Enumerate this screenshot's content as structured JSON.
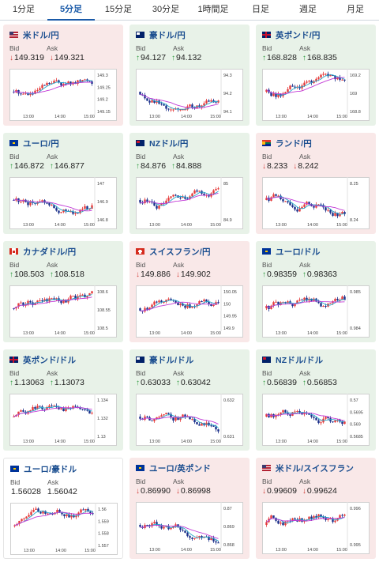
{
  "tabs": [
    "1分足",
    "5分足",
    "15分足",
    "30分足",
    "1時間足",
    "日足",
    "週足",
    "月足"
  ],
  "active_tab": 1,
  "labels": {
    "bid": "Bid",
    "ask": "Ask"
  },
  "colors": {
    "up_bg": "#e8f2e8",
    "down_bg": "#f9e8e8",
    "candle_up": "#e53a3a",
    "candle_down": "#1a2f8a",
    "ma_short": "#25a6c9",
    "ma_long": "#c23ad6",
    "arrow_up": "#2d9a3d",
    "arrow_down": "#d2403a",
    "link": "#1a4d8f"
  },
  "cards": [
    {
      "pair": "米ドル/円",
      "flag": "us-jp",
      "trend": "down",
      "bid_dir": "down",
      "bid": "149.319",
      "ask_dir": "down",
      "ask": "149.321",
      "yticks": [
        "149.3",
        "149.25",
        "149.2",
        "149.15"
      ],
      "xticks": [
        "13:00",
        "14:00",
        "15:00"
      ]
    },
    {
      "pair": "豪ドル/円",
      "flag": "au-jp",
      "trend": "up",
      "bid_dir": "up",
      "bid": "94.127",
      "ask_dir": "up",
      "ask": "94.132",
      "yticks": [
        "94.3",
        "94.2",
        "94.1"
      ],
      "xticks": [
        "13:00",
        "14:00",
        "15:00"
      ]
    },
    {
      "pair": "英ポンド/円",
      "flag": "gb-jp",
      "trend": "up",
      "bid_dir": "up",
      "bid": "168.828",
      "ask_dir": "up",
      "ask": "168.835",
      "yticks": [
        "169.2",
        "169",
        "168.8"
      ],
      "xticks": [
        "13:00",
        "14:00",
        "15:00"
      ]
    },
    {
      "pair": "ユーロ/円",
      "flag": "eu-jp",
      "trend": "up",
      "bid_dir": "up",
      "bid": "146.872",
      "ask_dir": "up",
      "ask": "146.877",
      "yticks": [
        "147",
        "146.9",
        "146.8"
      ],
      "xticks": [
        "13:00",
        "14:00",
        "15:00"
      ]
    },
    {
      "pair": "NZドル/円",
      "flag": "nz-jp",
      "trend": "up",
      "bid_dir": "up",
      "bid": "84.876",
      "ask_dir": "up",
      "ask": "84.888",
      "yticks": [
        "85",
        "84.9"
      ],
      "xticks": [
        "13:00",
        "14:00",
        "15:00"
      ]
    },
    {
      "pair": "ランド/円",
      "flag": "za-jp",
      "trend": "down",
      "bid_dir": "down",
      "bid": "8.233",
      "ask_dir": "down",
      "ask": "8.242",
      "yticks": [
        "8.25",
        "8.24"
      ],
      "xticks": [
        "13:00",
        "14:00",
        "15:00"
      ]
    },
    {
      "pair": "カナダドル/円",
      "flag": "ca-jp",
      "trend": "up",
      "bid_dir": "up",
      "bid": "108.503",
      "ask_dir": "up",
      "ask": "108.518",
      "yticks": [
        "108.6",
        "108.55",
        "108.5"
      ],
      "xticks": [
        "13:00",
        "14:00",
        "15:00"
      ]
    },
    {
      "pair": "スイスフラン/円",
      "flag": "ch-jp",
      "trend": "down",
      "bid_dir": "down",
      "bid": "149.886",
      "ask_dir": "down",
      "ask": "149.902",
      "yticks": [
        "150.05",
        "150",
        "149.95",
        "149.9"
      ],
      "xticks": [
        "13:00",
        "14:00",
        "15:00"
      ]
    },
    {
      "pair": "ユーロ/ドル",
      "flag": "eu-us",
      "trend": "up",
      "bid_dir": "up",
      "bid": "0.98359",
      "ask_dir": "up",
      "ask": "0.98363",
      "yticks": [
        "0.985",
        "0.984"
      ],
      "xticks": [
        "13:00",
        "14:00",
        "15:00"
      ]
    },
    {
      "pair": "英ポンド/ドル",
      "flag": "gb-us",
      "trend": "up",
      "bid_dir": "up",
      "bid": "1.13063",
      "ask_dir": "up",
      "ask": "1.13073",
      "yticks": [
        "1.134",
        "1.132",
        "1.13"
      ],
      "xticks": [
        "13:00",
        "14:00",
        "15:00"
      ]
    },
    {
      "pair": "豪ドル/ドル",
      "flag": "au-us",
      "trend": "up",
      "bid_dir": "up",
      "bid": "0.63033",
      "ask_dir": "up",
      "ask": "0.63042",
      "yticks": [
        "0.632",
        "0.631"
      ],
      "xticks": [
        "13:00",
        "14:00",
        "15:00"
      ]
    },
    {
      "pair": "NZドル/ドル",
      "flag": "nz-us",
      "trend": "up",
      "bid_dir": "up",
      "bid": "0.56839",
      "ask_dir": "up",
      "ask": "0.56853",
      "yticks": [
        "0.57",
        "0.5695",
        "0.569",
        "0.5685"
      ],
      "xticks": [
        "13:00",
        "14:00",
        "15:00"
      ]
    },
    {
      "pair": "ユーロ/豪ドル",
      "flag": "eu-au",
      "trend": "none",
      "bid_dir": "",
      "bid": "1.56028",
      "ask_dir": "",
      "ask": "1.56042",
      "yticks": [
        "1.56",
        "1.559",
        "1.558",
        "1.557"
      ],
      "xticks": [
        "13:00",
        "14:00",
        "15:00"
      ]
    },
    {
      "pair": "ユーロ/英ポンド",
      "flag": "eu-gb",
      "trend": "down",
      "bid_dir": "down",
      "bid": "0.86990",
      "ask_dir": "down",
      "ask": "0.86998",
      "yticks": [
        "0.87",
        "0.869",
        "0.868"
      ],
      "xticks": [
        "13:00",
        "14:00",
        "15:00"
      ]
    },
    {
      "pair": "米ドル/スイスフラン",
      "flag": "us-ch",
      "trend": "down",
      "bid_dir": "down",
      "bid": "0.99609",
      "ask_dir": "down",
      "ask": "0.99624",
      "yticks": [
        "0.996",
        "0.995"
      ],
      "xticks": [
        "13:00",
        "14:00",
        "15:00"
      ]
    }
  ]
}
